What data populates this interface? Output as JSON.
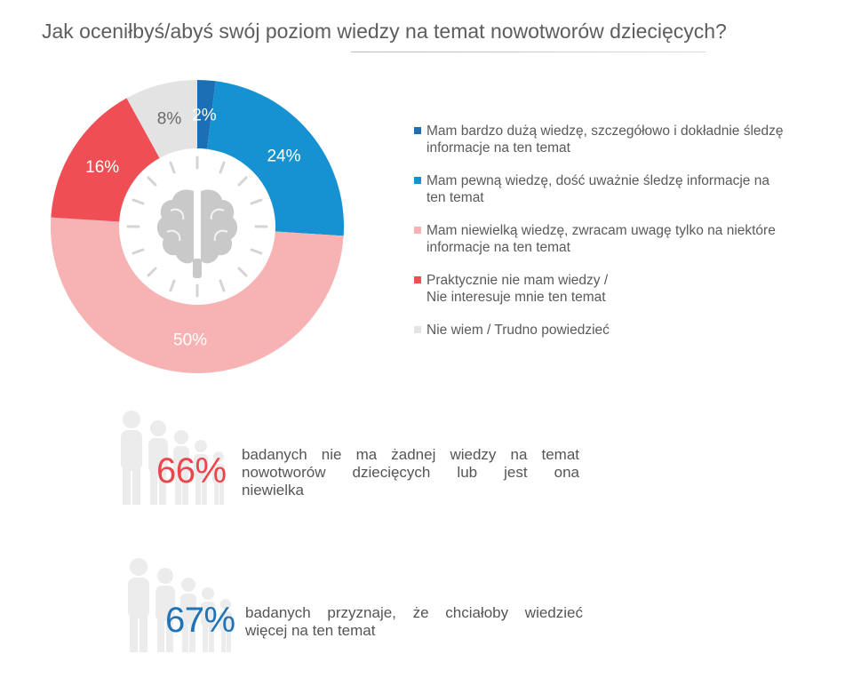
{
  "title": "Jak oceniłbyś/abyś swój poziom wiedzy na temat nowotworów dziecięcych?",
  "chart_data": {
    "type": "pie",
    "title": "Jak oceniłbyś/abyś swój poziom wiedzy na temat nowotworów dziecięcych?",
    "unit": "%",
    "center_icon": "brain-icon",
    "slices": [
      {
        "label": "Mam bardzo dużą wiedzę, szczegółowo i dokładnie śledzę informacje na ten temat",
        "value": 2,
        "display": "2%",
        "color": "#1b6fb4",
        "text_color": "#ffffff"
      },
      {
        "label": "Mam pewną wiedzę, dość uważnie śledzę informacje na ten temat",
        "value": 24,
        "display": "24%",
        "color": "#1692d3",
        "text_color": "#ffffff"
      },
      {
        "label": "Mam niewielką wiedzę, zwracam uwagę tylko na niektóre informacje na ten temat",
        "value": 50,
        "display": "50%",
        "color": "#f7b3b4",
        "text_color": "#ffffff"
      },
      {
        "label": "Praktycznie nie mam wiedzy / Nie interesuje mnie ten temat",
        "value": 16,
        "display": "16%",
        "color": "#ef4e55",
        "text_color": "#ffffff"
      },
      {
        "label": "Nie wiem / Trudno powiedzieć",
        "value": 8,
        "display": "8%",
        "color": "#e3e3e3",
        "text_color": "#6a6a6a"
      }
    ]
  },
  "legend": [
    {
      "line1": "Mam bardzo dużą wiedzę, szczegółowo i dokładnie śledzę",
      "line2": "informacje na ten temat"
    },
    {
      "line1": "Mam pewną wiedzę, dość uważnie śledzę informacje na",
      "line2": "ten temat"
    },
    {
      "line1": "Mam niewielką wiedzę, zwracam uwagę tylko na niektóre",
      "line2": "informacje na ten temat"
    },
    {
      "line1": "Praktycznie nie mam wiedzy /",
      "line2": "Nie interesuje mnie ten temat"
    },
    {
      "line1": "Nie wiem / Trudno powiedzieć",
      "line2": ""
    }
  ],
  "stats": [
    {
      "value": "66%",
      "color": "#e9474c",
      "line1": "badanych nie ma żadnej wiedzy na temat",
      "line2": "nowotworów dziecięcych lub jest ona",
      "line3": "niewielka",
      "icon": "people-group-icon"
    },
    {
      "value": "67%",
      "color": "#1f73b6",
      "line1": "badanych przyznaje, że chciałoby wiedzieć",
      "line2": "więcej na ten temat",
      "line3": "",
      "icon": "people-group-icon"
    }
  ]
}
